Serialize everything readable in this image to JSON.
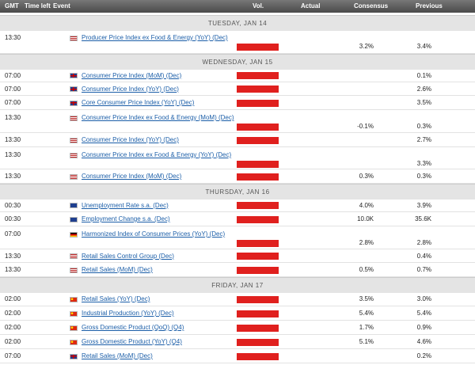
{
  "header": {
    "gmt": "GMT",
    "time_left": "Time left",
    "event": "Event",
    "vol": "Vol.",
    "actual": "Actual",
    "consensus": "Consensus",
    "previous": "Previous"
  },
  "days": [
    {
      "label": "TUESDAY, JAN 14",
      "events": [
        {
          "time": "13:30",
          "event": "Producer Price Index ex Food & Energy (YoY) (Dec)",
          "consensus": "3.2%",
          "previous": "3.4%"
        }
      ]
    },
    {
      "label": "WEDNESDAY, JAN 15",
      "events": [
        {
          "time": "07:00",
          "event": "Consumer Price Index (MoM) (Dec)",
          "previous": "0.1%"
        },
        {
          "time": "07:00",
          "event": "Consumer Price Index (YoY) (Dec)",
          "previous": "2.6%"
        },
        {
          "time": "07:00",
          "event": "Core Consumer Price Index (YoY) (Dec)",
          "previous": "3.5%"
        },
        {
          "time": "13:30",
          "event": "Consumer Price Index ex Food & Energy (MoM) (Dec)",
          "consensus": "-0.1%",
          "previous": "0.3%"
        },
        {
          "time": "13:30",
          "event": "Consumer Price Index (YoY) (Dec)",
          "previous": "2.7%"
        },
        {
          "time": "13:30",
          "event": "Consumer Price Index ex Food & Energy (YoY) (Dec)",
          "previous": "3.3%"
        },
        {
          "time": "13:30",
          "event": "Consumer Price Index (MoM) (Dec)",
          "consensus": "0.3%",
          "previous": "0.3%"
        }
      ]
    },
    {
      "label": "THURSDAY, JAN 16",
      "events": [
        {
          "time": "00:30",
          "event": "Unemployment Rate s.a. (Dec)",
          "consensus": "4.0%",
          "previous": "3.9%"
        },
        {
          "time": "00:30",
          "event": "Employment Change s.a. (Dec)",
          "consensus": "10.0K",
          "previous": "35.6K"
        },
        {
          "time": "07:00",
          "event": "Harmonized Index of Consumer Prices (YoY) (Dec)",
          "consensus": "2.8%",
          "previous": "2.8%"
        },
        {
          "time": "13:30",
          "event": "Retail Sales Control Group (Dec)",
          "previous": "0.4%"
        },
        {
          "time": "13:30",
          "event": "Retail Sales (MoM) (Dec)",
          "consensus": "0.5%",
          "previous": "0.7%"
        }
      ]
    },
    {
      "label": "FRIDAY, JAN 17",
      "events": [
        {
          "time": "02:00",
          "event": "Retail Sales (YoY) (Dec)",
          "consensus": "3.5%",
          "previous": "3.0%"
        },
        {
          "time": "02:00",
          "event": "Industrial Production (YoY) (Dec)",
          "consensus": "5.4%",
          "previous": "5.4%"
        },
        {
          "time": "02:00",
          "event": "Gross Domestic Product (QoQ) (Q4)",
          "consensus": "1.7%",
          "previous": "0.9%"
        },
        {
          "time": "02:00",
          "event": "Gross Domestic Product (YoY) (Q4)",
          "consensus": "5.1%",
          "previous": "4.6%"
        },
        {
          "time": "07:00",
          "event": "Retail Sales (MoM) (Dec)",
          "previous": "0.2%"
        }
      ]
    }
  ]
}
